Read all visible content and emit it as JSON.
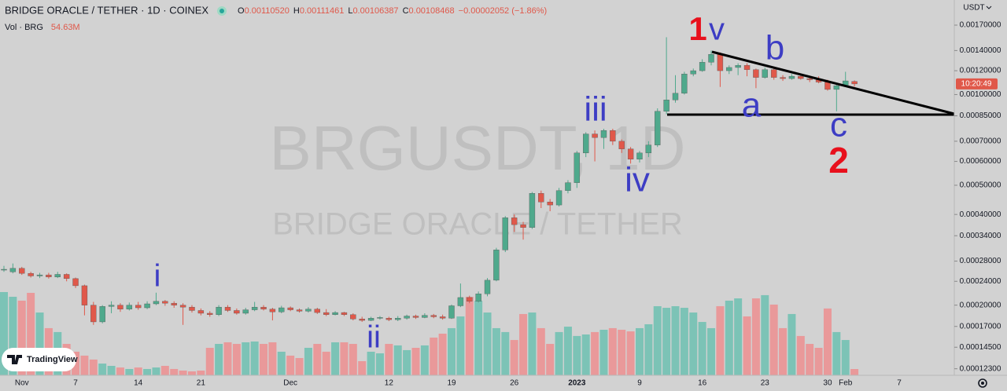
{
  "chart_data": {
    "type": "candlestick",
    "legend": {
      "symbol": "BRIDGE ORACLE / TETHER · 1D · COINEX",
      "ohlc": [
        [
          "O",
          "0.00110520"
        ],
        [
          "H",
          "0.00111461"
        ],
        [
          "L",
          "0.00106387"
        ],
        [
          "C",
          "0.00108468"
        ]
      ],
      "change": "−0.00002052 (−1.86%)",
      "volume_name": "Vol · BRG",
      "volume_value": "54.63M"
    },
    "currency": "USDT",
    "countdown": "10:20:49",
    "watermark": [
      "BRGUSDT, 1D",
      "BRIDGE ORACLE / TETHER"
    ],
    "annotations": [
      {
        "text": "1",
        "color": "#e8101c"
      },
      {
        "text": "v",
        "color": "#3d3dc4"
      },
      {
        "text": "b",
        "color": "#3d3dc4"
      },
      {
        "text": "a",
        "color": "#3d3dc4"
      },
      {
        "text": "c",
        "color": "#3d3dc4"
      },
      {
        "text": "2",
        "color": "#e8101c"
      },
      {
        "text": "iii",
        "color": "#3d3dc4"
      },
      {
        "text": "iv",
        "color": "#3d3dc4"
      },
      {
        "text": "i",
        "color": "#3d3dc4"
      },
      {
        "text": "ii",
        "color": "#3d3dc4"
      }
    ],
    "branding": "TradingView",
    "categories": [
      null,
      null,
      "Nov",
      null,
      null,
      null,
      null,
      null,
      "7",
      null,
      null,
      null,
      null,
      null,
      null,
      "14",
      null,
      null,
      null,
      null,
      null,
      null,
      "21",
      null,
      null,
      null,
      null,
      null,
      null,
      null,
      null,
      null,
      "Dec",
      null,
      null,
      null,
      null,
      null,
      null,
      null,
      null,
      null,
      null,
      "12",
      null,
      null,
      null,
      null,
      null,
      null,
      "19",
      null,
      null,
      null,
      null,
      null,
      null,
      "26",
      null,
      null,
      null,
      null,
      null,
      null,
      "2023",
      null,
      null,
      null,
      null,
      null,
      null,
      "9",
      null,
      null,
      null,
      null,
      null,
      null,
      "16",
      null,
      null,
      null,
      null,
      null,
      null,
      "23",
      null,
      null,
      null,
      null,
      null,
      null,
      "30",
      null,
      "Feb",
      null,
      null,
      null,
      null,
      null,
      "7"
    ],
    "open": [
      0.000262,
      0.000258,
      0.000265,
      0.000255,
      0.00025,
      0.000252,
      0.000248,
      0.000253,
      0.000245,
      0.000232,
      0.0002,
      0.000176,
      0.000198,
      0.0002,
      0.000194,
      0.0002,
      0.000196,
      0.000202,
      0.000206,
      0.000203,
      0.0002,
      0.000197,
      0.000192,
      0.000188,
      0.000186,
      0.000197,
      0.000192,
      0.000188,
      0.000193,
      0.000197,
      0.000194,
      0.00019,
      0.000196,
      0.000193,
      0.000191,
      0.000194,
      0.000189,
      0.000186,
      0.000189,
      0.000186,
      0.00018,
      0.000178,
      0.000181,
      0.000181,
      0.000179,
      0.000181,
      0.000184,
      0.000182,
      0.000185,
      0.000183,
      0.000181,
      0.000199,
      0.000212,
      0.000206,
      0.000218,
      0.000242,
      0.000305,
      0.00039,
      0.00037,
      0.000362,
      0.00047,
      0.00044,
      0.00043,
      0.00048,
      0.00051,
      0.00064,
      0.00074,
      0.00072,
      0.00076,
      0.0007,
      0.00066,
      0.00061,
      0.00064,
      0.00068,
      0.00088,
      0.00096,
      0.00101,
      0.00117,
      0.0012,
      0.00128,
      0.00136,
      0.0012,
      0.00123,
      0.00125,
      0.00121,
      0.00114,
      0.00121,
      0.00114,
      0.00113,
      0.00115,
      0.00113,
      0.00112,
      0.0011,
      0.00104,
      0.00107,
      0.0011052,
      null,
      null,
      null,
      null,
      null
    ],
    "high": [
      0.00027,
      0.000275,
      0.000268,
      0.000258,
      0.000256,
      0.000256,
      0.000258,
      0.000255,
      0.000247,
      0.000234,
      0.000205,
      0.0002,
      0.000206,
      0.000203,
      0.000204,
      0.000205,
      0.000206,
      0.00022,
      0.000208,
      0.000206,
      0.000203,
      0.0002,
      0.000195,
      0.000191,
      0.0002,
      0.0002,
      0.000195,
      0.000196,
      0.000205,
      0.0002,
      0.000196,
      0.000199,
      0.000198,
      0.000195,
      0.000197,
      0.000196,
      0.000194,
      0.000191,
      0.00019,
      0.000188,
      0.000183,
      0.000183,
      0.000184,
      0.000183,
      0.000184,
      0.000186,
      0.000186,
      0.000188,
      0.000187,
      0.000186,
      0.000201,
      0.000236,
      0.000215,
      0.000222,
      0.000246,
      0.00031,
      0.000395,
      0.0004,
      0.000378,
      0.000475,
      0.00048,
      0.00045,
      0.00049,
      0.00052,
      0.00065,
      0.00075,
      0.00076,
      0.00077,
      0.00077,
      0.00071,
      0.00067,
      0.00065,
      0.0007,
      0.0009,
      0.00155,
      0.00116,
      0.00119,
      0.00122,
      0.00131,
      0.0014,
      0.00138,
      0.00125,
      0.00127,
      0.00127,
      0.00122,
      0.00123,
      0.00122,
      0.00116,
      0.00117,
      0.00116,
      0.00115,
      0.00115,
      0.00112,
      0.00108,
      0.00119,
      0.00111461,
      null,
      null,
      null,
      null,
      null
    ],
    "low": [
      0.000258,
      0.000255,
      0.000252,
      0.000247,
      0.000246,
      0.000245,
      0.000246,
      0.00024,
      0.000228,
      0.000185,
      0.000172,
      0.000174,
      0.000188,
      0.00019,
      0.000192,
      0.000193,
      0.000194,
      0.0002,
      0.000199,
      0.000196,
      0.000172,
      0.000189,
      0.000185,
      0.000183,
      0.000184,
      0.00019,
      0.000186,
      0.000186,
      0.000191,
      0.000192,
      0.000178,
      0.000188,
      0.000191,
      0.000189,
      0.000189,
      0.000187,
      0.000184,
      0.000185,
      0.000184,
      0.000178,
      0.000176,
      0.000177,
      0.000179,
      0.000177,
      0.000177,
      0.000179,
      0.00018,
      0.000181,
      0.000181,
      0.000179,
      0.00018,
      0.000197,
      0.000203,
      0.000204,
      0.000214,
      0.00024,
      0.0003,
      0.00035,
      0.00033,
      0.000358,
      0.00042,
      0.00041,
      0.000425,
      0.00047,
      0.00049,
      0.00062,
      0.0006,
      0.00066,
      0.00068,
      0.00064,
      0.00059,
      0.000595,
      0.00062,
      0.00067,
      0.00086,
      0.00094,
      0.001,
      0.00115,
      0.00119,
      0.00125,
      0.00106,
      0.00117,
      0.00116,
      0.00115,
      0.00105,
      0.00113,
      0.00112,
      0.00111,
      0.00112,
      0.00112,
      0.0011,
      0.00109,
      0.00103,
      0.00088,
      0.00106,
      0.00106387,
      null,
      null,
      null,
      null,
      null
    ],
    "close": [
      0.000263,
      0.000265,
      0.000255,
      0.00025,
      0.000252,
      0.000248,
      0.000253,
      0.000245,
      0.000232,
      0.0002,
      0.000176,
      0.000198,
      0.0002,
      0.000194,
      0.0002,
      0.000196,
      0.000202,
      0.000206,
      0.000203,
      0.0002,
      0.000197,
      0.000192,
      0.000188,
      0.000186,
      0.000197,
      0.000192,
      0.000188,
      0.000193,
      0.000197,
      0.000194,
      0.00019,
      0.000196,
      0.000193,
      0.000191,
      0.000194,
      0.000189,
      0.000186,
      0.000189,
      0.000186,
      0.00018,
      0.000178,
      0.000181,
      0.000182,
      0.000179,
      0.000181,
      0.000184,
      0.000182,
      0.000185,
      0.000183,
      0.000181,
      0.000199,
      0.000212,
      0.000206,
      0.000218,
      0.000242,
      0.000305,
      0.00039,
      0.00037,
      0.000362,
      0.00047,
      0.00044,
      0.00043,
      0.00048,
      0.00051,
      0.00064,
      0.00074,
      0.00072,
      0.00076,
      0.0007,
      0.00066,
      0.00061,
      0.00064,
      0.00068,
      0.00088,
      0.00096,
      0.00101,
      0.00117,
      0.0012,
      0.00128,
      0.00136,
      0.0012,
      0.00123,
      0.00125,
      0.00121,
      0.00114,
      0.00121,
      0.00114,
      0.00113,
      0.00115,
      0.00113,
      0.00112,
      0.0011,
      0.00104,
      0.00107,
      0.00111,
      0.00108468,
      null,
      null,
      null,
      null,
      null
    ],
    "volume": {
      "ylim": [
        0,
        3264
      ],
      "values": [
        724,
        683,
        649,
        717,
        546,
        410,
        376,
        273,
        205,
        171,
        137,
        102,
        82,
        68,
        55,
        68,
        55,
        68,
        82,
        55,
        41,
        34,
        41,
        239,
        273,
        287,
        273,
        287,
        294,
        273,
        287,
        205,
        171,
        150,
        239,
        273,
        205,
        287,
        287,
        273,
        123,
        205,
        191,
        273,
        260,
        219,
        239,
        260,
        328,
        362,
        410,
        512,
        683,
        649,
        546,
        410,
        376,
        307,
        533,
        546,
        410,
        273,
        376,
        423,
        342,
        355,
        376,
        396,
        410,
        396,
        382,
        410,
        444,
        601,
        587,
        601,
        587,
        546,
        464,
        410,
        601,
        649,
        669,
        512,
        669,
        697,
        615,
        410,
        533,
        342,
        273,
        239,
        581,
        376,
        307,
        54.63,
        null,
        null,
        null,
        null,
        null
      ]
    },
    "up_color": "#4fa98c",
    "down_color": "#e0584a",
    "volume_up_color": "#7cc3b6",
    "volume_down_color": "#e9999a",
    "log_scale": true,
    "grid": false,
    "ylim": [
      0.000117,
      0.00206
    ],
    "yticks": [
      {
        "value": 0.0017,
        "label": "0.00170000"
      },
      {
        "value": 0.0014,
        "label": "0.00140000"
      },
      {
        "value": 0.0012,
        "label": "0.00120000"
      },
      {
        "value": 0.001,
        "label": "0.00100000"
      },
      {
        "value": 0.00085,
        "label": "0.00085000"
      },
      {
        "value": 0.0007,
        "label": "0.00070000"
      },
      {
        "value": 0.0006,
        "label": "0.00060000"
      },
      {
        "value": 0.0005,
        "label": "0.00050000"
      },
      {
        "value": 0.0004,
        "label": "0.00040000"
      },
      {
        "value": 0.00034,
        "label": "0.00034000"
      },
      {
        "value": 0.00028,
        "label": "0.00028000"
      },
      {
        "value": 0.00024,
        "label": "0.00024000"
      },
      {
        "value": 0.0002,
        "label": "0.00020000"
      },
      {
        "value": 0.00017,
        "label": "0.00017000"
      },
      {
        "value": 0.000145,
        "label": "0.00014500"
      },
      {
        "value": 0.000123,
        "label": "0.00012300"
      }
    ]
  }
}
